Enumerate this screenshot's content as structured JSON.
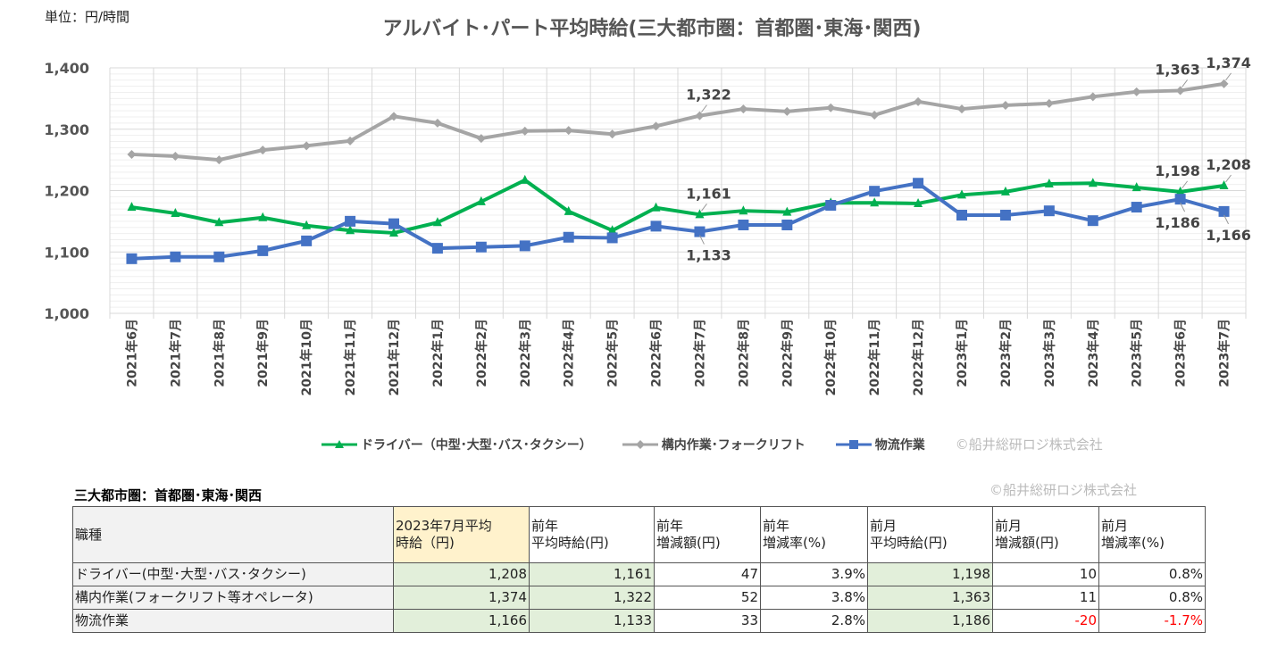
{
  "unit_label": "単位：円/時間",
  "chart_data": {
    "type": "line",
    "title": "アルバイト･パート平均時給(三大都市圏：首都圏･東海･関西)",
    "ylim": [
      1000,
      1400
    ],
    "yticks": [
      1000,
      1100,
      1200,
      1300,
      1400
    ],
    "ytick_labels": [
      "1,000",
      "1,100",
      "1,200",
      "1,300",
      "1,400"
    ],
    "grid": true,
    "legend_position": "bottom",
    "categories": [
      "2021年6月",
      "2021年7月",
      "2021年8月",
      "2021年9月",
      "2021年10月",
      "2021年11月",
      "2021年12月",
      "2022年1月",
      "2022年2月",
      "2022年3月",
      "2022年4月",
      "2022年5月",
      "2022年6月",
      "2022年7月",
      "2022年8月",
      "2022年9月",
      "2022年10月",
      "2022年11月",
      "2022年12月",
      "2023年1月",
      "2023年2月",
      "2023年3月",
      "2023年4月",
      "2023年5月",
      "2023年6月",
      "2023年7月"
    ],
    "series": [
      {
        "name": "ドライバー（中型･大型･バス･タクシー）",
        "color": "#00b050",
        "marker": "triangle",
        "values": [
          1173,
          1163,
          1148,
          1156,
          1143,
          1135,
          1131,
          1148,
          1182,
          1217,
          1166,
          1135,
          1172,
          1161,
          1167,
          1165,
          1180,
          1180,
          1179,
          1193,
          1198,
          1211,
          1212,
          1205,
          1198,
          1208
        ],
        "labels": [
          {
            "index": 13,
            "text": "1,161",
            "pos": "above"
          },
          {
            "index": 24,
            "text": "1,198",
            "pos": "above"
          },
          {
            "index": 25,
            "text": "1,208",
            "pos": "above"
          }
        ]
      },
      {
        "name": "構内作業･フォークリフト",
        "color": "#a5a5a5",
        "marker": "diamond",
        "values": [
          1259,
          1256,
          1250,
          1266,
          1273,
          1281,
          1321,
          1310,
          1285,
          1297,
          1298,
          1292,
          1305,
          1322,
          1333,
          1329,
          1335,
          1323,
          1345,
          1333,
          1339,
          1342,
          1353,
          1361,
          1363,
          1374
        ],
        "labels": [
          {
            "index": 13,
            "text": "1,322",
            "pos": "above"
          },
          {
            "index": 24,
            "text": "1,363",
            "pos": "above"
          },
          {
            "index": 25,
            "text": "1,374",
            "pos": "above"
          }
        ]
      },
      {
        "name": "物流作業",
        "color": "#4472c4",
        "marker": "star-square",
        "values": [
          1089,
          1092,
          1092,
          1102,
          1118,
          1150,
          1146,
          1106,
          1108,
          1110,
          1124,
          1123,
          1142,
          1133,
          1144,
          1144,
          1176,
          1199,
          1212,
          1160,
          1160,
          1167,
          1151,
          1173,
          1186,
          1166
        ],
        "labels": [
          {
            "index": 13,
            "text": "1,133",
            "pos": "below"
          },
          {
            "index": 24,
            "text": "1,186",
            "pos": "below"
          },
          {
            "index": 25,
            "text": "1,166",
            "pos": "below"
          }
        ]
      }
    ]
  },
  "legend_copyright": "©船井総研ロジ株式会社",
  "table": {
    "caption": "三大都市圏：首都圏･東海･関西",
    "copyright": "©船井総研ロジ株式会社",
    "headers": [
      [
        "職種"
      ],
      [
        "2023年7月平均",
        "時給（円)"
      ],
      [
        "前年",
        "平均時給(円)"
      ],
      [
        "前年",
        "増減額(円)"
      ],
      [
        "前年",
        "増減率(%)"
      ],
      [
        "前月",
        "平均時給(円)"
      ],
      [
        "前月",
        "増減額(円)"
      ],
      [
        "前月",
        "増減率(%)"
      ]
    ],
    "rows": [
      [
        "ドライバー(中型･大型･バス･タクシー)",
        "1,208",
        "1,161",
        "47",
        "3.9%",
        "1,198",
        "10",
        "0.8%"
      ],
      [
        "構内作業(フォークリフト等オペレータ)",
        "1,374",
        "1,322",
        "52",
        "3.8%",
        "1,363",
        "11",
        "0.8%"
      ],
      [
        "物流作業",
        "1,166",
        "1,133",
        "33",
        "2.8%",
        "1,186",
        "-20",
        "-1.7%"
      ]
    ],
    "negative_color": "#ff0000"
  }
}
